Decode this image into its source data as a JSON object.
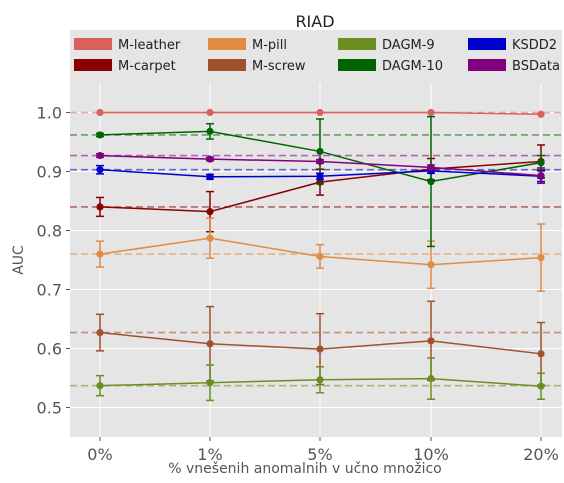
{
  "chart_data": {
    "type": "line",
    "title": "RIAD",
    "xlabel": "% vnešenih anomalnih v učno množico",
    "ylabel": "AUC",
    "categories": [
      "0%",
      "1%",
      "5%",
      "10%",
      "20%"
    ],
    "ylim": [
      0.45,
      1.05
    ],
    "yticks": [
      "0.5",
      "0.6",
      "0.7",
      "0.8",
      "0.9",
      "1.0"
    ],
    "grid": true,
    "legend_position": "top",
    "series": [
      {
        "name": "M-leather",
        "color": "#d9605c",
        "values": [
          1.0,
          1.0,
          1.0,
          1.0,
          0.997
        ],
        "err": [
          0.0,
          0.0,
          0.0,
          0.0,
          0.0
        ],
        "baseline": 1.0
      },
      {
        "name": "M-carpet",
        "color": "#8b0000",
        "values": [
          0.84,
          0.832,
          0.882,
          0.904,
          0.917
        ],
        "err": [
          0.016,
          0.034,
          0.022,
          0.018,
          0.028
        ],
        "baseline": 0.84
      },
      {
        "name": "M-pill",
        "color": "#e08c45",
        "values": [
          0.76,
          0.787,
          0.756,
          0.742,
          0.754
        ],
        "err": [
          0.022,
          0.034,
          0.02,
          0.04,
          0.057
        ],
        "baseline": 0.76
      },
      {
        "name": "M-screw",
        "color": "#a0522d",
        "values": [
          0.627,
          0.608,
          0.599,
          0.613,
          0.591
        ],
        "err": [
          0.031,
          0.063,
          0.06,
          0.067,
          0.053
        ],
        "baseline": 0.627
      },
      {
        "name": "DAGM-9",
        "color": "#6b8e23",
        "values": [
          0.537,
          0.542,
          0.547,
          0.549,
          0.536
        ],
        "err": [
          0.017,
          0.03,
          0.022,
          0.035,
          0.022
        ],
        "baseline": 0.537
      },
      {
        "name": "DAGM-10",
        "color": "#006400",
        "values": [
          0.962,
          0.968,
          0.934,
          0.883,
          0.915
        ],
        "err": [
          0.003,
          0.013,
          0.055,
          0.11,
          0.012
        ],
        "baseline": 0.962
      },
      {
        "name": "KSDD2",
        "color": "#0000cd",
        "values": [
          0.903,
          0.891,
          0.892,
          0.901,
          0.892
        ],
        "err": [
          0.007,
          0.004,
          0.005,
          0.004,
          0.009
        ],
        "baseline": 0.903
      },
      {
        "name": "BSData",
        "color": "#800080",
        "values": [
          0.927,
          0.921,
          0.917,
          0.907,
          0.893
        ],
        "err": [
          0.003,
          0.003,
          0.003,
          0.004,
          0.013
        ],
        "baseline": 0.927
      }
    ]
  }
}
